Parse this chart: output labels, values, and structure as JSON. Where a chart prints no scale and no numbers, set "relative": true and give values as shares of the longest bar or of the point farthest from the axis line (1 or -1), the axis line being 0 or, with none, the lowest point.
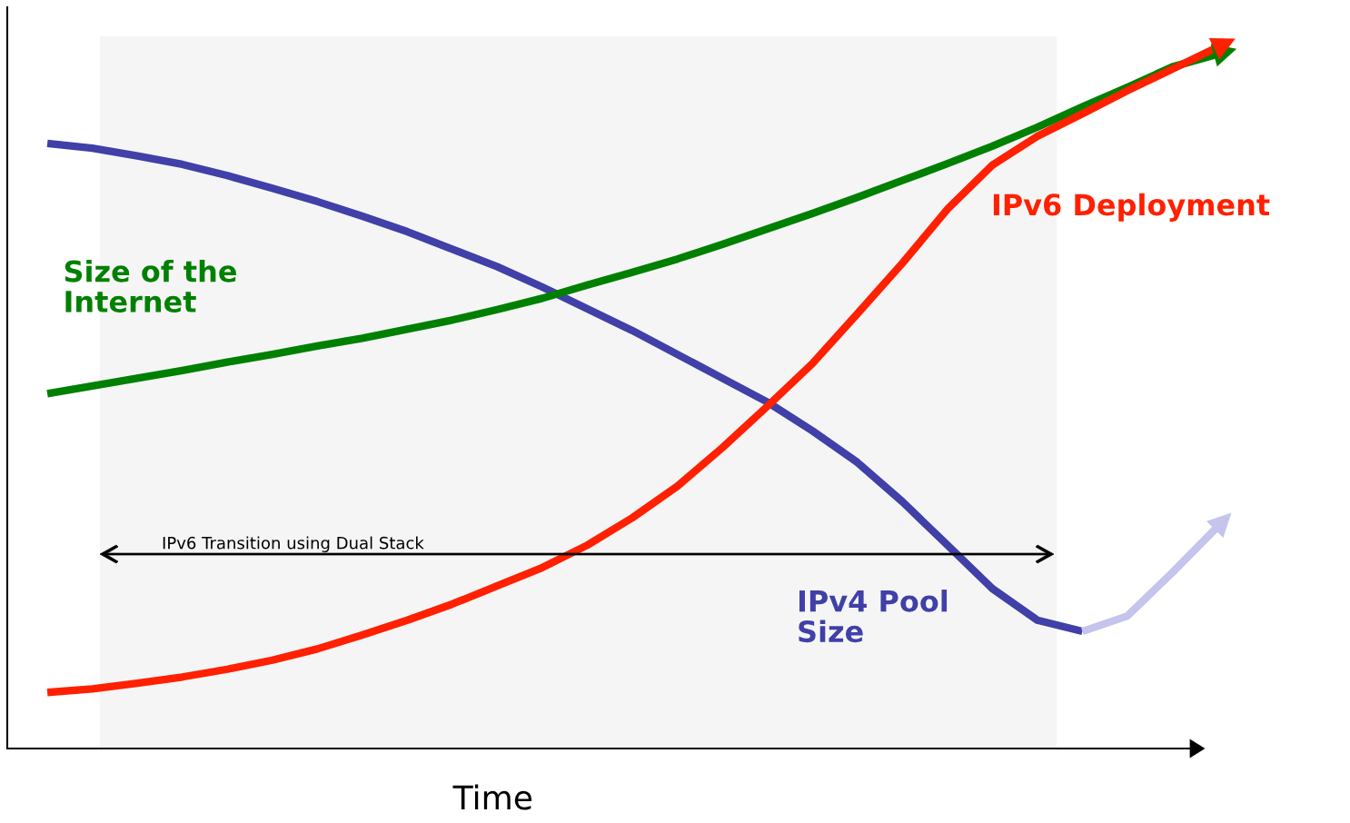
{
  "chart_data": {
    "type": "line",
    "relative": true,
    "xlabel": "Time",
    "legend": false,
    "grid": false,
    "marker": "none",
    "line_style": "solid",
    "categories": [
      null,
      null,
      null,
      null,
      null,
      null,
      null,
      null,
      null,
      null,
      null,
      null,
      null,
      null,
      null,
      null,
      null,
      null,
      null,
      null,
      null,
      null,
      null,
      null,
      null,
      null,
      null
    ],
    "series": [
      {
        "name": "IPv4 Pool\nSize",
        "color": "#4040a8",
        "values": [
          0.863,
          0.856,
          0.845,
          0.833,
          0.817,
          0.799,
          0.78,
          0.759,
          0.737,
          0.712,
          0.687,
          0.658,
          0.627,
          0.596,
          0.562,
          0.528,
          0.494,
          0.453,
          0.408,
          0.352,
          0.29,
          0.228,
          0.183,
          0.167,
          null,
          null,
          null
        ]
      },
      {
        "color": "#c4c4ec",
        "values": [
          null,
          null,
          null,
          null,
          null,
          null,
          null,
          null,
          null,
          null,
          null,
          null,
          null,
          null,
          null,
          null,
          null,
          null,
          null,
          null,
          null,
          null,
          null,
          0.167,
          0.189,
          0.251,
          0.316
        ]
      },
      {
        "name": "Size of the\nInternet",
        "color": "#008000",
        "values": [
          0.506,
          0.517,
          0.528,
          0.539,
          0.551,
          0.562,
          0.574,
          0.585,
          0.598,
          0.611,
          0.626,
          0.642,
          0.661,
          0.679,
          0.698,
          0.719,
          0.741,
          0.763,
          0.786,
          0.81,
          0.834,
          0.859,
          0.886,
          0.915,
          0.943,
          0.972,
          0.99
        ]
      },
      {
        "name": "IPv6 Deployment",
        "color": "#ff2000",
        "values": [
          0.08,
          0.085,
          0.093,
          0.102,
          0.113,
          0.126,
          0.142,
          0.162,
          0.183,
          0.206,
          0.232,
          0.258,
          0.29,
          0.329,
          0.374,
          0.429,
          0.488,
          0.549,
          0.62,
          0.692,
          0.769,
          0.832,
          0.873,
          0.905,
          0.938,
          0.969,
          1.0
        ]
      }
    ],
    "annotations": [
      "IPv6 Transition using Dual Stack"
    ]
  }
}
